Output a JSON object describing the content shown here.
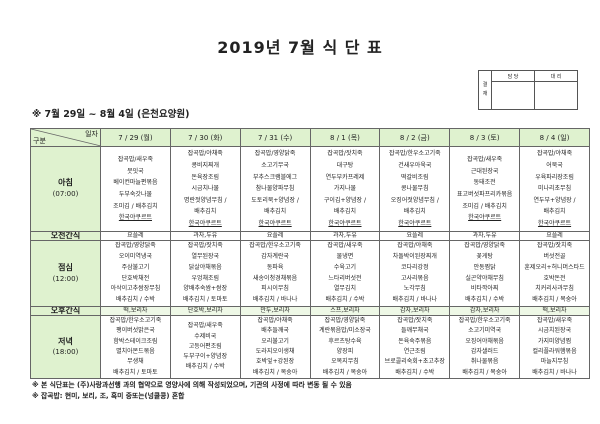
{
  "title": "2019년 7월 식 단 표",
  "approval": {
    "label": "결\n재",
    "col1": "담 당",
    "col2": "대 리"
  },
  "subtitle": "※ 7월 29일 ~ 8월 4일 (은천요양원)",
  "header": {
    "corner_top": "일자",
    "corner_bottom": "구분",
    "days": [
      "7 / 29 (월)",
      "7 / 30 (화)",
      "7 / 31 (수)",
      "8 / 1 (목)",
      "8 / 2 (금)",
      "8 / 3 (토)",
      "8 / 4 (일)"
    ]
  },
  "rows": [
    {
      "label": "아침",
      "time": "(07:00)",
      "type": "bf",
      "cells": [
        [
          "잡곡밥/새우죽",
          "뭇잇국",
          "베이컨마늘편볶음",
          "두부숙갓나물",
          "조미김 / 배추김치",
          "한국야쿠르트"
        ],
        [
          "잡곡밥/야채죽",
          "콩비지찌개",
          "돈육장조림",
          "시금치나물",
          "명란젓양념무침 /",
          "배추김치",
          "한국야쿠르트"
        ],
        [
          "잡곡밥/영양닭죽",
          "소고기무국",
          "부추스크램블에그",
          "참나물양파무침",
          "도토리묵+양념장 /",
          "배추김치",
          "한국야쿠르트"
        ],
        [
          "잡곡밥/잣치죽",
          "대구탕",
          "연두부카프레제",
          "가지나물",
          "구이김+양념장 /",
          "배추김치",
          "한국야쿠르트"
        ],
        [
          "잡곡밥/한우소고기죽",
          "건새우아욱국",
          "떡갈비조림",
          "콩나물무침",
          "오징어젓양념무침 /",
          "배추김치",
          "한국야쿠르트"
        ],
        [
          "잡곡밥/새우죽",
          "근대된장국",
          "동태조전",
          "표고버섯파프리카볶음",
          "조미김 / 배추김치",
          "한국야쿠르트"
        ],
        [
          "잡곡밥/야채죽",
          "어묵국",
          "우육파리장조림",
          "미나리초무침",
          "연두부+양념장 /",
          "배추김치",
          "한국야쿠르트"
        ]
      ]
    },
    {
      "label": "오전간식",
      "type": "snack",
      "cells": [
        [
          "요플레"
        ],
        [
          "과자,두유"
        ],
        [
          "요플레"
        ],
        [
          "과자,두유"
        ],
        [
          "요플레"
        ],
        [
          "과자,두유"
        ],
        [
          "요플레"
        ]
      ]
    },
    {
      "label": "점심",
      "time": "(12:00)",
      "type": "ln",
      "cells": [
        [
          "잡곡밥/영양닭죽",
          "오이미역냉국",
          "주삼불고기",
          "단호박채전",
          "아삭이고추쌈장무침",
          "배추김치 / 수박"
        ],
        [
          "잡곡밥/잣치죽",
          "열무된장국",
          "닭살야채볶음",
          "우엉채조림",
          "양배추숙쌈+쌈장",
          "배추김치 / 토마토"
        ],
        [
          "잡곡밥/한우소고기죽",
          "감자계란국",
          "동파육",
          "새송이청경채볶음",
          "피시이무침",
          "배추김치 / 바나나"
        ],
        [
          "잡곡밥/새우죽",
          "물냉면",
          "수육고기",
          "느타리버섯전",
          "열무김치",
          "배추김치 / 수박"
        ],
        [
          "잡곡밥/야채죽",
          "차돌박이된장찌개",
          "코다리강정",
          "고사리볶음",
          "노각무침",
          "배추김치 / 바나나"
        ],
        [
          "잡곡밥/영양닭죽",
          "꽃게탕",
          "안동찜닭",
          "실곤약야채무침",
          "비타깍아찌",
          "배추김치 / 수박"
        ],
        [
          "잡곡밥/잣치죽",
          "버섯전골",
          "훈제오리+허니머스타드",
          "호박돈전",
          "치커리사과무침",
          "배추김치 / 복숭아"
        ]
      ]
    },
    {
      "label": "오후간식",
      "type": "snack pm",
      "cells": [
        [
          "떡,보리차"
        ],
        [
          "단호박,보리차"
        ],
        [
          "만두,보리차"
        ],
        [
          "스프,보리차"
        ],
        [
          "감자,보리차"
        ],
        [
          "감자,보리차"
        ],
        [
          "떡,보리차"
        ]
      ]
    },
    {
      "label": "저녁",
      "time": "(18:00)",
      "type": "dn",
      "cells": [
        [
          "잡곡밥/한우소고기죽",
          "팽이버섯맑은국",
          "함박스테이크조림",
          "멸치아몬드볶음",
          "무생채",
          "배추김치 / 토마토"
        ],
        [
          "잡곡밥/새우죽",
          "수제비국",
          "고등어편조림",
          "두부구이+양념장",
          "배추김치 / 수박"
        ],
        [
          "잡곡밥/야채죽",
          "배추들깨국",
          "오리불고기",
          "도라지오이생채",
          "호박잎+강된장",
          "배추김치 / 복숭아"
        ],
        [
          "잡곡밥/영양닭죽",
          "계란볶음밥/미소장국",
          "후르츠탕수육",
          "양장피",
          "오목지무침",
          "배추김치 / 복숭아"
        ],
        [
          "잡곡밥/잣치죽",
          "들깨무채국",
          "돈육숙주볶음",
          "연근조림",
          "브로콜리숙회+초고추장",
          "배추김치 / 수박"
        ],
        [
          "잡곡밥/한우소고기죽",
          "소고기미역국",
          "오징어야채볶음",
          "감자샐러드",
          "취나물볶음",
          "배추김치 / 복숭아"
        ],
        [
          "잡곡밥/새우죽",
          "시금치된장국",
          "가지미양념찜",
          "컬리플라워햄볶음",
          "마늘지무침",
          "배추김치 / 바나나"
        ]
      ]
    }
  ],
  "notes": [
    "※ 본 식단표는 (주)사랑과선행 과의 협약으로 영양사에 의해 작성되었으며, 기관의 사정에 따라 변동 될 수 있음",
    "※ 잡곡밥: 현미, 보리, 조, 흑미 중또는(넝쿨콩) 혼합"
  ],
  "colors": {
    "header_bg": "#dff2cf",
    "border": "#666666"
  }
}
